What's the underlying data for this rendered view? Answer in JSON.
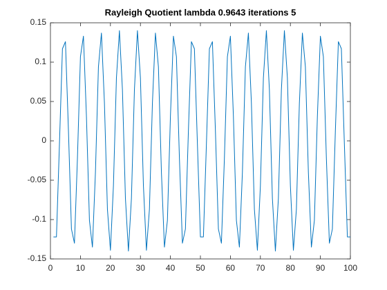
{
  "chart_data": {
    "type": "line",
    "title": "Rayleigh Quotient  lambda 0.9643  iterations 5",
    "x": [
      1,
      2,
      3,
      4,
      5,
      6,
      7,
      8,
      9,
      10,
      11,
      12,
      13,
      14,
      15,
      16,
      17,
      18,
      19,
      20,
      21,
      22,
      23,
      24,
      25,
      26,
      27,
      28,
      29,
      30,
      31,
      32,
      33,
      34,
      35,
      36,
      37,
      38,
      39,
      40,
      41,
      42,
      43,
      44,
      45,
      46,
      47,
      48,
      49,
      50,
      51,
      52,
      53,
      54,
      55,
      56,
      57,
      58,
      59,
      60,
      61,
      62,
      63,
      64,
      65,
      66,
      67,
      68,
      69,
      70,
      71,
      72,
      73,
      74,
      75,
      76,
      77,
      78,
      79,
      80,
      81,
      82,
      83,
      84,
      85,
      86,
      87,
      88,
      89,
      90,
      91,
      92,
      93,
      94,
      95,
      96,
      97,
      98,
      99,
      100
    ],
    "series": [
      {
        "color": "#0072bd",
        "values": [
          -0.122,
          -0.122,
          -0.004,
          0.117,
          0.126,
          0.013,
          -0.112,
          -0.13,
          -0.022,
          0.107,
          0.133,
          0.031,
          -0.101,
          -0.135,
          -0.04,
          0.094,
          0.137,
          0.048,
          -0.087,
          -0.139,
          -0.057,
          0.08,
          0.14,
          0.065,
          -0.073,
          -0.14,
          -0.073,
          0.065,
          0.14,
          0.08,
          -0.057,
          -0.139,
          -0.087,
          0.048,
          0.137,
          0.094,
          -0.04,
          -0.135,
          -0.101,
          0.031,
          0.133,
          0.107,
          -0.022,
          -0.13,
          -0.112,
          0.013,
          0.126,
          0.117,
          -0.004,
          -0.122,
          -0.122,
          -0.004,
          0.117,
          0.126,
          0.013,
          -0.112,
          -0.13,
          -0.022,
          0.107,
          0.133,
          0.031,
          -0.101,
          -0.135,
          -0.04,
          0.094,
          0.137,
          0.048,
          -0.087,
          -0.139,
          -0.057,
          0.08,
          0.14,
          0.065,
          -0.073,
          -0.14,
          -0.073,
          0.065,
          0.14,
          0.08,
          -0.057,
          -0.139,
          -0.087,
          0.048,
          0.137,
          0.094,
          -0.04,
          -0.135,
          -0.101,
          0.031,
          0.133,
          0.107,
          -0.022,
          -0.13,
          -0.112,
          0.013,
          0.126,
          0.117,
          -0.004,
          -0.122,
          -0.122
        ]
      }
    ],
    "xlim": [
      0,
      100
    ],
    "xticks": [
      0,
      10,
      20,
      30,
      40,
      50,
      60,
      70,
      80,
      90,
      100
    ],
    "ylim": [
      -0.15,
      0.15
    ],
    "yticks": [
      -0.15,
      -0.1,
      -0.05,
      0,
      0.05,
      0.1,
      0.15
    ],
    "grid": false
  }
}
